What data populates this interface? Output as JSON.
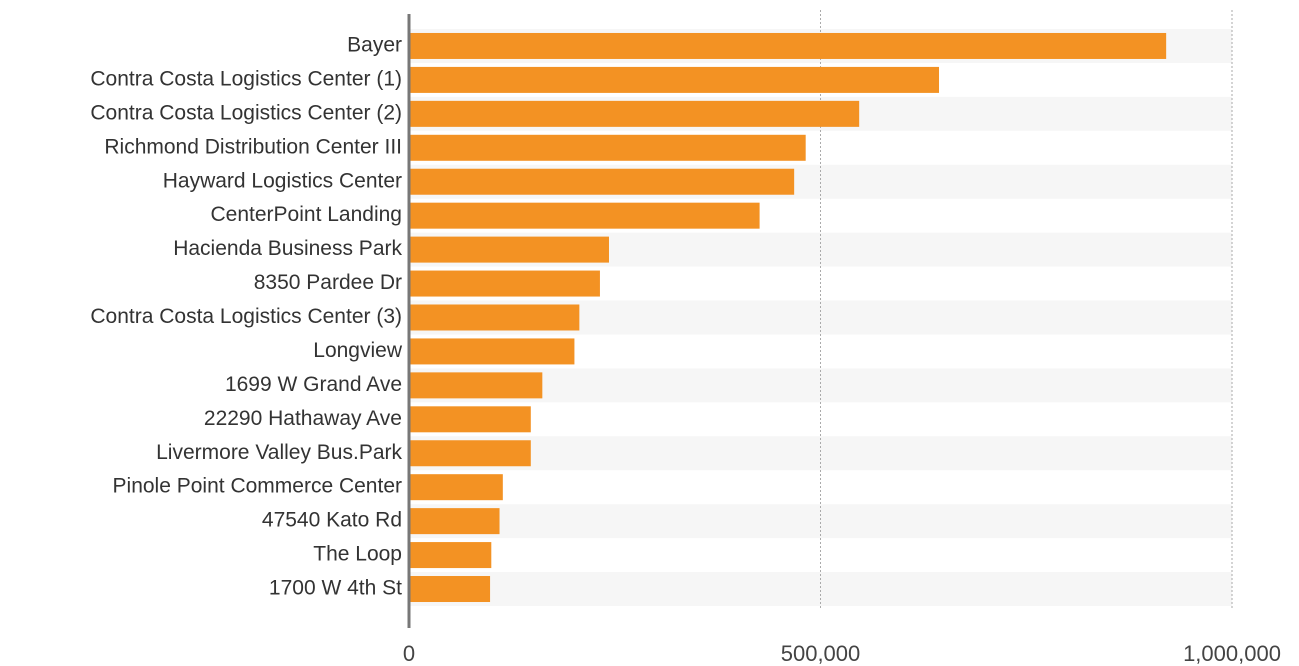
{
  "chart_data": {
    "type": "hbar",
    "categories": [
      "Bayer",
      "Contra Costa Logistics Center (1)",
      "Contra Costa Logistics Center (2)",
      "Richmond Distribution Center III",
      "Hayward Logistics Center",
      "CenterPoint Landing",
      "Hacienda Business Park",
      "8350 Pardee Dr",
      "Contra Costa Logistics Center (3)",
      "Longview",
      "1699 W Grand Ave",
      "22290 Hathaway Ave",
      "Livermore Valley Bus.Park",
      "Pinole Point Commerce Center",
      "47540 Kato Rd",
      "The Loop",
      "1700 W 4th St"
    ],
    "values": [
      920000,
      644000,
      547000,
      482000,
      468000,
      426000,
      243000,
      232000,
      207000,
      201000,
      162000,
      148000,
      148000,
      114000,
      110000,
      100000,
      98500
    ],
    "color": "#f39223",
    "xlim": [
      0,
      1000000
    ],
    "xticks": [
      0,
      {
        "value": 500000,
        "label": "500,000"
      },
      {
        "value": 1000000,
        "label": "1,000,000"
      }
    ],
    "grid": true
  }
}
